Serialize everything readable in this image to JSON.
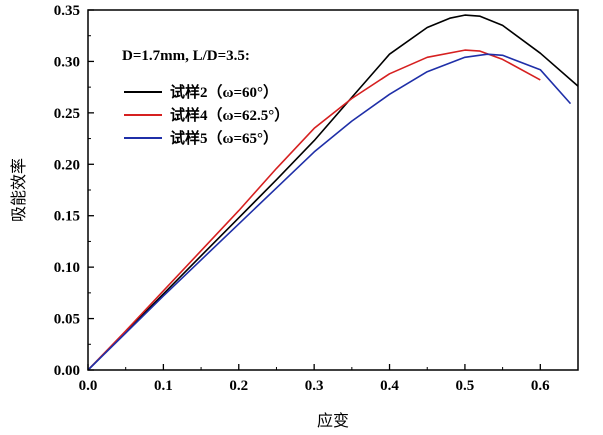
{
  "chart_data": {
    "type": "line",
    "xlabel": "应变",
    "ylabel": "吸能效率",
    "annotation": "D=1.7mm, L/D=3.5:",
    "xlim": [
      0.0,
      0.65
    ],
    "ylim": [
      0.0,
      0.35
    ],
    "xticks": [
      "0.0",
      "0.1",
      "0.2",
      "0.3",
      "0.4",
      "0.5",
      "0.6"
    ],
    "yticks": [
      "0.00",
      "0.05",
      "0.10",
      "0.15",
      "0.20",
      "0.25",
      "0.30",
      "0.35"
    ],
    "legend_position": "top-left",
    "grid": false,
    "series": [
      {
        "name": "试样2（ω=60°）",
        "color": "#000000",
        "x": [
          0.0,
          0.05,
          0.1,
          0.15,
          0.2,
          0.25,
          0.3,
          0.35,
          0.4,
          0.45,
          0.48,
          0.5,
          0.52,
          0.55,
          0.6,
          0.65
        ],
        "y": [
          0.0,
          0.037,
          0.074,
          0.111,
          0.148,
          0.185,
          0.223,
          0.265,
          0.307,
          0.333,
          0.342,
          0.345,
          0.344,
          0.335,
          0.308,
          0.276
        ]
      },
      {
        "name": "试样4（ω=62.5°）",
        "color": "#d62020",
        "x": [
          0.0,
          0.05,
          0.1,
          0.15,
          0.2,
          0.25,
          0.3,
          0.35,
          0.4,
          0.45,
          0.5,
          0.52,
          0.55,
          0.6
        ],
        "y": [
          0.0,
          0.038,
          0.077,
          0.116,
          0.155,
          0.196,
          0.235,
          0.264,
          0.288,
          0.304,
          0.311,
          0.31,
          0.302,
          0.282
        ]
      },
      {
        "name": "试样5（ω=65°）",
        "color": "#1f2fa8",
        "x": [
          0.0,
          0.05,
          0.1,
          0.15,
          0.2,
          0.25,
          0.3,
          0.35,
          0.4,
          0.45,
          0.5,
          0.53,
          0.55,
          0.6,
          0.64
        ],
        "y": [
          0.0,
          0.036,
          0.072,
          0.107,
          0.142,
          0.177,
          0.212,
          0.242,
          0.268,
          0.29,
          0.304,
          0.307,
          0.306,
          0.292,
          0.259
        ]
      }
    ]
  }
}
